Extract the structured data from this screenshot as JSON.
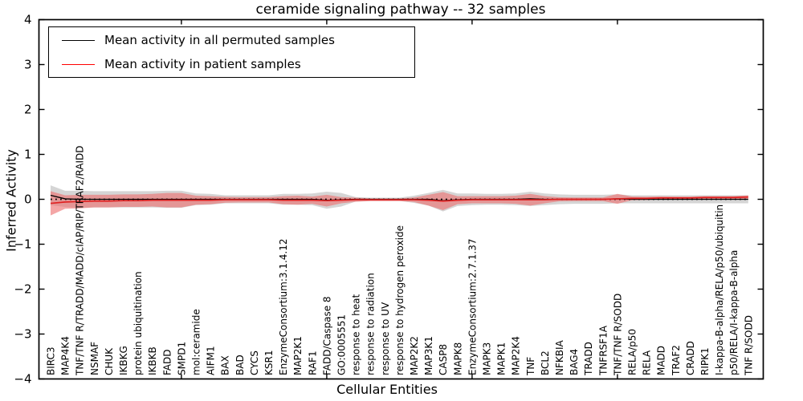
{
  "figure": {
    "title": "ceramide signaling pathway -- 32 samples",
    "xlabel": "Cellular Entities",
    "ylabel": "Inferred Activity"
  },
  "legend": {
    "position": "upper left",
    "items": [
      {
        "label": "Mean activity in all permuted samples",
        "color": "#000000"
      },
      {
        "label": "Mean activity in patient samples",
        "color": "#ff0000"
      }
    ]
  },
  "chart_data": {
    "type": "line",
    "title": "ceramide signaling pathway -- 32 samples",
    "xlabel": "Cellular Entities",
    "ylabel": "Inferred Activity",
    "ylim": [
      -4,
      4
    ],
    "yticks": [
      -4,
      -3,
      -2,
      -1,
      0,
      1,
      2,
      3,
      4
    ],
    "grid": false,
    "legend_position": "upper left",
    "zero_line": "dotted black line at y=0",
    "bands": "shaded regions show mean ± std per series",
    "categories": [
      "BIRC3",
      "MAP4K4",
      "TNF/TNF R/TRADD/MADD/cIAP/RIP/TRAF2/RAIDD",
      "NSMAF",
      "CHUK",
      "IKBKG",
      "protein ubiquitination",
      "IKBKB",
      "FADD",
      "SMPD1",
      "mol:ceramide",
      "AIFM1",
      "BAX",
      "BAD",
      "CYCS",
      "KSR1",
      "EnzymeConsortium:3.1.4.12",
      "MAP2K1",
      "RAF1",
      "FADD/Caspase 8",
      "GO:0005551",
      "response to heat",
      "response to radiation",
      "response to UV",
      "response to hydrogen peroxide",
      "MAP2K2",
      "MAP3K1",
      "CASP8",
      "MAPK8",
      "EnzymeConsortium:2.7.1.37",
      "MAPK3",
      "MAPK1",
      "MAP2K4",
      "TNF",
      "BCL2",
      "NFKBIA",
      "BAG4",
      "TRADD",
      "TNFRSF1A",
      "TNF/TNF R/SODD",
      "RELA/p50",
      "RELA",
      "MADD",
      "TRAF2",
      "CRADD",
      "RIPK1",
      "I-kappa-B-alpha/RELA/p50/ubiquitin",
      "p50/RELA/I-kappa-B-alpha",
      "TNF R/SODD"
    ],
    "series": [
      {
        "name": "Mean activity in all permuted samples",
        "line_color": "#000000",
        "band_color": "#b3b3b3",
        "band_opacity": 0.55,
        "mean": [
          0.09,
          0.01,
          0.0,
          0.0,
          0.0,
          0.0,
          0.0,
          0.0,
          0.0,
          0.0,
          0.0,
          0.0,
          0.0,
          0.0,
          0.0,
          0.0,
          0.0,
          0.0,
          0.0,
          -0.02,
          -0.01,
          0.0,
          0.0,
          0.0,
          0.0,
          0.0,
          0.0,
          -0.03,
          -0.01,
          0.0,
          0.0,
          0.0,
          0.0,
          0.01,
          0.0,
          0.0,
          0.0,
          0.0,
          0.0,
          0.01,
          0.0,
          0.0,
          0.0,
          0.0,
          0.0,
          0.0,
          0.0,
          0.0,
          0.0
        ],
        "std": [
          0.22,
          0.18,
          0.19,
          0.18,
          0.18,
          0.18,
          0.18,
          0.18,
          0.19,
          0.19,
          0.13,
          0.12,
          0.09,
          0.09,
          0.09,
          0.09,
          0.12,
          0.12,
          0.13,
          0.19,
          0.15,
          0.05,
          0.035,
          0.035,
          0.035,
          0.08,
          0.14,
          0.24,
          0.14,
          0.13,
          0.12,
          0.12,
          0.13,
          0.16,
          0.13,
          0.11,
          0.1,
          0.1,
          0.1,
          0.1,
          0.09,
          0.09,
          0.09,
          0.09,
          0.09,
          0.09,
          0.09,
          0.09,
          0.09
        ]
      },
      {
        "name": "Mean activity in patient samples",
        "line_color": "#e02222",
        "band_color": "#ee7070",
        "band_opacity": 0.62,
        "mean": [
          -0.09,
          -0.06,
          -0.05,
          -0.04,
          -0.04,
          -0.03,
          -0.03,
          -0.02,
          -0.02,
          -0.02,
          -0.02,
          -0.02,
          -0.01,
          -0.01,
          -0.01,
          -0.01,
          -0.02,
          -0.02,
          -0.02,
          -0.03,
          -0.02,
          -0.01,
          -0.01,
          -0.01,
          -0.01,
          -0.01,
          -0.02,
          -0.04,
          -0.02,
          -0.01,
          -0.01,
          -0.01,
          -0.01,
          -0.01,
          -0.01,
          0.0,
          0.0,
          0.0,
          0.0,
          0.01,
          0.02,
          0.02,
          0.03,
          0.03,
          0.03,
          0.04,
          0.04,
          0.04,
          0.05
        ],
        "std": [
          0.27,
          0.15,
          0.15,
          0.14,
          0.14,
          0.14,
          0.14,
          0.14,
          0.16,
          0.16,
          0.1,
          0.09,
          0.065,
          0.06,
          0.06,
          0.06,
          0.09,
          0.1,
          0.08,
          0.13,
          0.07,
          0.045,
          0.03,
          0.03,
          0.03,
          0.05,
          0.12,
          0.2,
          0.09,
          0.08,
          0.08,
          0.08,
          0.09,
          0.13,
          0.08,
          0.045,
          0.04,
          0.04,
          0.04,
          0.11,
          0.04,
          0.035,
          0.035,
          0.03,
          0.03,
          0.03,
          0.03,
          0.03,
          0.04
        ]
      }
    ]
  }
}
